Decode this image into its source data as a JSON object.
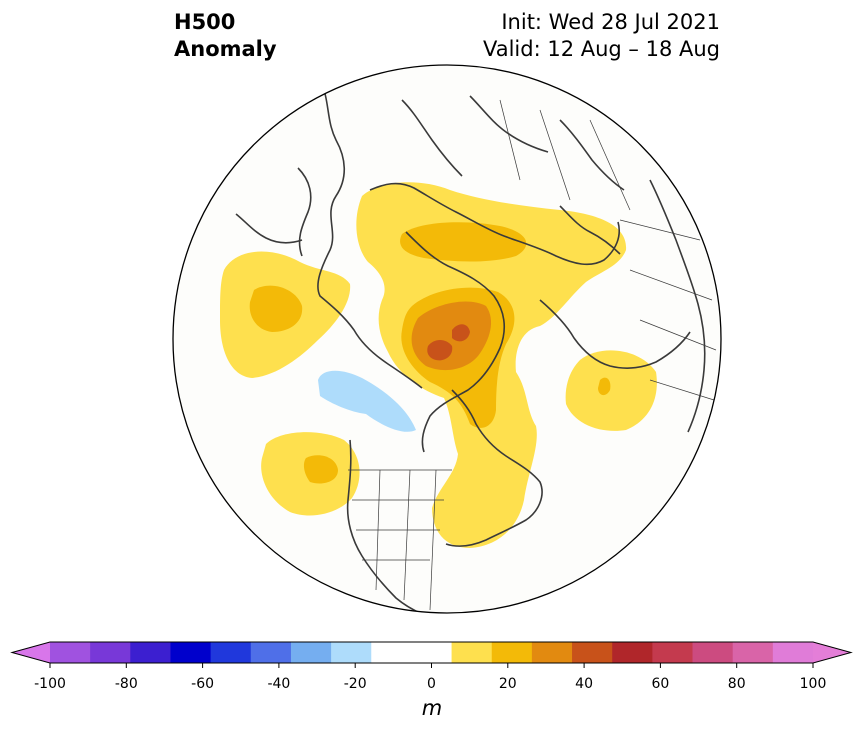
{
  "title": {
    "left_line1": "H500",
    "left_line2": "Anomaly",
    "init": "Init: Wed 28 Jul 2021",
    "valid": "Valid: 12 Aug – 18 Aug"
  },
  "map": {
    "projection": "north-polar-stereographic",
    "background": "#fdfdfb",
    "coastline_color": "#3a3a3a"
  },
  "colorbar": {
    "units": "m",
    "ticks": [
      "-100",
      "-80",
      "-60",
      "-40",
      "-20",
      "0",
      "20",
      "40",
      "60",
      "80",
      "100"
    ],
    "levels": [
      -100,
      -90,
      -80,
      -70,
      -60,
      -50,
      -40,
      -30,
      -20,
      -10,
      10,
      20,
      30,
      40,
      50,
      60,
      70,
      80,
      90,
      100
    ],
    "colors": [
      "#a052e0",
      "#7838d8",
      "#3c1fd0",
      "#0000cc",
      "#2038dc",
      "#4f6fe8",
      "#75aef0",
      "#aedcfb",
      "#ffffff",
      "#ffffff",
      "#fee04e",
      "#f3ba08",
      "#e28a10",
      "#c8521a",
      "#b0262a",
      "#c43a4e",
      "#cc4b80",
      "#d964a8",
      "#e07cd8"
    ],
    "extend_low": "#d876ea",
    "extend_high": "#e47ed8"
  }
}
